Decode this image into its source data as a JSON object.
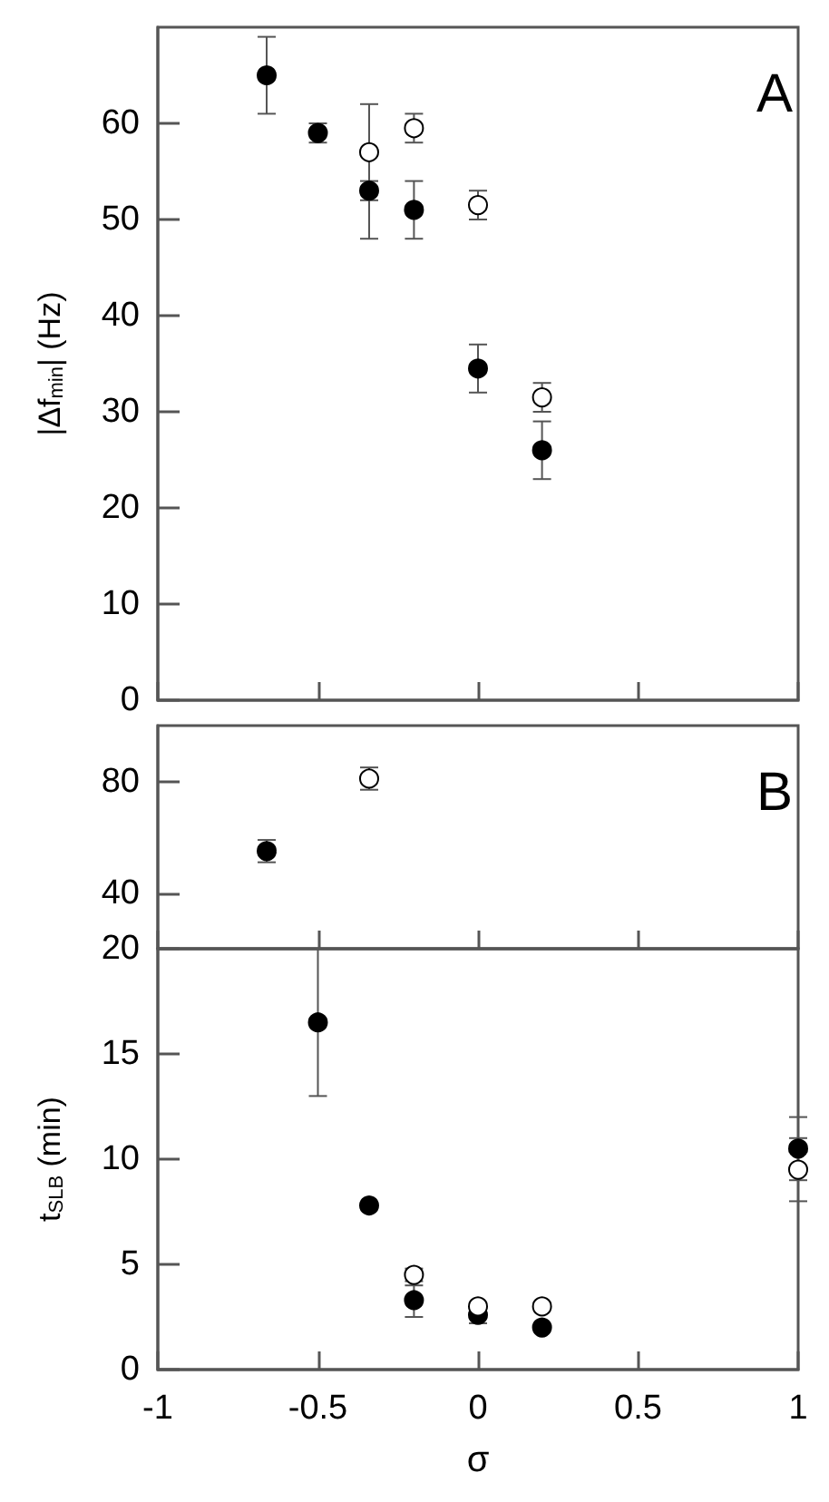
{
  "chart_data": [
    {
      "type": "scatter",
      "ylabel": "|Δf$_{min}$| (Hz)",
      "annotations": [
        "A"
      ],
      "xlim": [
        -1,
        1
      ],
      "xticks": [
        -1,
        -0.5,
        0,
        0.5,
        1
      ],
      "ylim": [
        0,
        70
      ],
      "yticks": [
        0,
        10,
        20,
        30,
        40,
        50,
        60
      ],
      "tick_labels": "y",
      "grid": false,
      "marker": "circle",
      "series": [
        {
          "color": "#000000",
          "x": [
            -0.66,
            -0.5,
            -0.34,
            -0.2,
            0,
            0.2
          ],
          "values": [
            65,
            59,
            53,
            51,
            34.5,
            26
          ],
          "errors": [
            [
              61,
              69
            ],
            [
              58,
              60
            ],
            [
              48,
              54
            ],
            [
              48,
              54
            ],
            [
              32,
              37
            ],
            [
              23,
              29
            ]
          ]
        },
        {
          "color": "#ffffff",
          "x": [
            -0.34,
            -0.2,
            0,
            0.2
          ],
          "values": [
            57,
            59.5,
            51.5,
            31.5
          ],
          "errors": [
            [
              52,
              62
            ],
            [
              58,
              61
            ],
            [
              50,
              53
            ],
            [
              30,
              33
            ]
          ]
        }
      ]
    },
    {
      "type": "scatter",
      "annotations": [
        "B"
      ],
      "xlim": [
        -1,
        1
      ],
      "xticks": [
        -1,
        -0.5,
        0,
        0.5,
        1
      ],
      "ylim": [
        20,
        100
      ],
      "yticks": [
        40,
        80
      ],
      "tick_labels": "y",
      "grid": false,
      "marker": "circle",
      "series": [
        {
          "color": "#000000",
          "x": [
            -0.66
          ],
          "values": [
            55
          ],
          "errors": [
            [
              51,
              59
            ]
          ]
        },
        {
          "color": "#ffffff",
          "x": [
            -0.34
          ],
          "values": [
            81
          ],
          "errors": [
            [
              77,
              85
            ]
          ]
        }
      ]
    },
    {
      "type": "scatter",
      "xlabel": "σ",
      "ylabel": "t$_{SLB}$ (min)",
      "xlim": [
        -1,
        1
      ],
      "xticks": [
        -1,
        -0.5,
        0,
        0.5,
        1
      ],
      "ylim": [
        0,
        20
      ],
      "yticks": [
        0,
        5,
        10,
        15,
        20
      ],
      "grid": false,
      "marker": "circle",
      "series": [
        {
          "color": "#000000",
          "x": [
            -0.5,
            -0.34,
            -0.2,
            0,
            0.2,
            1
          ],
          "values": [
            16.5,
            7.8,
            3.3,
            2.6,
            2,
            10.5
          ],
          "errors": [
            [
              13,
              20
            ],
            null,
            [
              2.5,
              4
            ],
            [
              2.2,
              2.6
            ],
            null,
            [
              9,
              12
            ]
          ]
        },
        {
          "color": "#ffffff",
          "x": [
            -0.2,
            0,
            0.2,
            1
          ],
          "values": [
            4.5,
            3,
            3,
            9.5
          ],
          "errors": [
            [
              4.2,
              4.8
            ],
            null,
            null,
            [
              8,
              11
            ]
          ]
        }
      ]
    }
  ]
}
